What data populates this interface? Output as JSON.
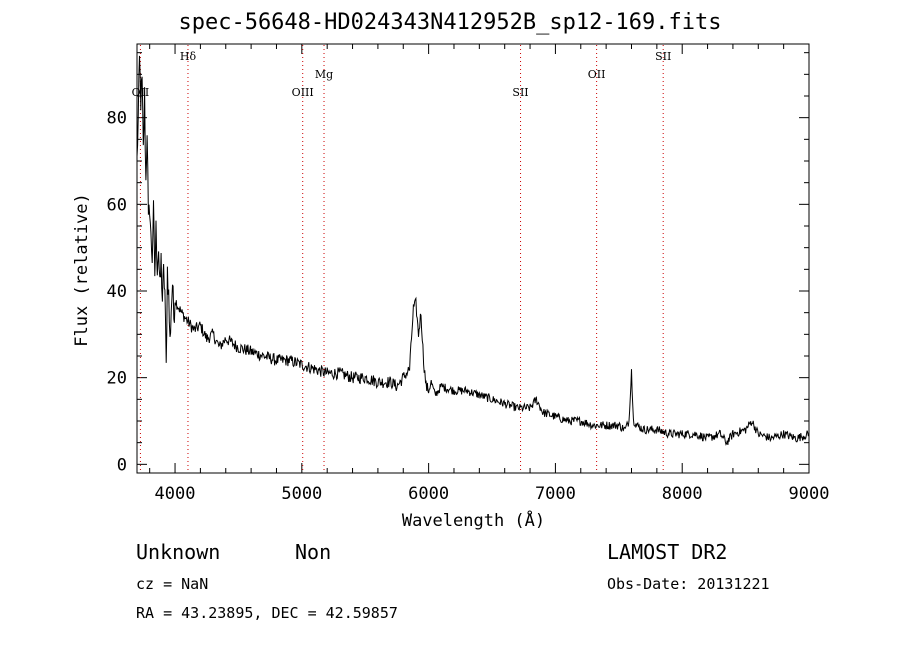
{
  "chart_data": {
    "type": "line",
    "title": "spec-56648-HD024343N412952B_sp12-169.fits",
    "xlabel": "Wavelength (Å)",
    "ylabel": "Flux (relative)",
    "xlim": [
      3700,
      9000
    ],
    "ylim": [
      -2,
      97
    ],
    "x_ticks": [
      4000,
      5000,
      6000,
      7000,
      8000,
      9000
    ],
    "y_ticks": [
      0,
      20,
      40,
      60,
      80
    ],
    "grid": false,
    "series": [
      {
        "x": [
          3700,
          3710,
          3720,
          3730,
          3740,
          3750,
          3760,
          3770,
          3780,
          3790,
          3800,
          3810,
          3820,
          3830,
          3840,
          3850,
          3860,
          3870,
          3880,
          3890,
          3900,
          3910,
          3920,
          3930,
          3940,
          3950,
          3960,
          3970,
          3980,
          3990,
          4000,
          4050,
          4100,
          4150,
          4200,
          4250,
          4300,
          4350,
          4400,
          4450,
          4500,
          4600,
          4700,
          4800,
          4900,
          5000,
          5100,
          5200,
          5300,
          5400,
          5500,
          5600,
          5700,
          5750,
          5800,
          5850,
          5880,
          5900,
          5920,
          5940,
          5960,
          5980,
          6000,
          6020,
          6050,
          6100,
          6200,
          6300,
          6400,
          6500,
          6600,
          6700,
          6800,
          6850,
          6900,
          7000,
          7100,
          7200,
          7300,
          7400,
          7500,
          7550,
          7580,
          7600,
          7610,
          7620,
          7640,
          7700,
          7800,
          7900,
          8000,
          8100,
          8200,
          8300,
          8350,
          8400,
          8500,
          8550,
          8600,
          8700,
          8800,
          8900,
          9000
        ],
        "y": [
          70,
          80,
          93,
          84,
          88,
          72,
          85,
          65,
          78,
          55,
          60,
          52,
          48,
          58,
          44,
          54,
          46,
          50,
          40,
          47,
          38,
          44,
          40,
          22,
          45,
          39,
          28,
          36,
          42,
          34,
          38,
          35,
          33,
          31,
          32,
          29,
          30,
          27,
          29,
          28,
          27,
          26,
          25,
          24,
          24,
          23,
          22,
          21,
          21,
          20,
          20,
          19,
          19,
          18,
          20,
          22,
          36,
          37,
          30,
          35,
          24,
          18,
          17,
          19,
          16,
          18,
          17,
          17,
          16,
          15,
          14,
          13,
          13,
          15,
          12,
          11,
          10,
          10,
          9,
          9,
          9,
          8,
          10,
          22,
          13,
          10,
          9,
          8,
          8,
          7,
          7,
          7,
          6,
          7,
          5,
          7,
          8,
          10,
          7,
          6,
          7,
          6,
          7
        ]
      }
    ],
    "annotations": [
      "OII",
      "Hδ",
      "OIII",
      "Mg",
      "SII",
      "OII",
      "SII"
    ]
  },
  "info": {
    "class": "Unknown",
    "subclass": "Non",
    "survey": "LAMOST DR2",
    "cz": "cz = NaN",
    "obs_date": "Obs-Date: 20131221",
    "radec": "RA =  43.23895, DEC =  42.59857"
  },
  "lines": [
    {
      "label": "OII",
      "wave": 3727,
      "row": 2
    },
    {
      "label": "Hδ",
      "wave": 4102,
      "row": 0
    },
    {
      "label": "OIII",
      "wave": 5007,
      "row": 2
    },
    {
      "label": "Mg",
      "wave": 5175,
      "row": 1
    },
    {
      "label": "SII",
      "wave": 6725,
      "row": 2
    },
    {
      "label": "OII",
      "wave": 7325,
      "row": 1
    },
    {
      "label": "SII",
      "wave": 7850,
      "row": 0
    }
  ],
  "colors": {
    "line_marker": "#cc0000",
    "spectrum": "#000000",
    "axes": "#000000"
  }
}
